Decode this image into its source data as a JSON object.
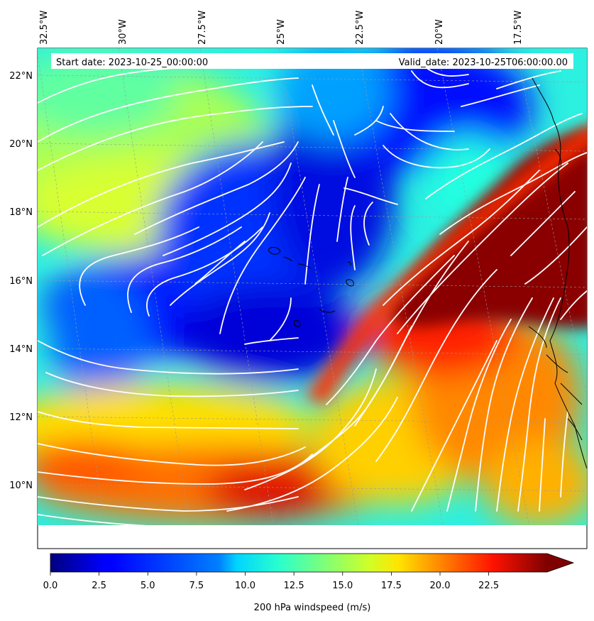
{
  "header": {
    "start_date": "Start date: 2023-10-25_00:00:00",
    "valid_date": "Valid_date: 2023-10-25T06:00:00.00"
  },
  "map": {
    "lon_ticks": [
      "32.5°W",
      "30°W",
      "27.5°W",
      "25°W",
      "22.5°W",
      "20°W",
      "17.5°W"
    ],
    "lat_ticks": [
      "22°N",
      "20°N",
      "18°N",
      "16°N",
      "14°N",
      "12°N",
      "10°N"
    ],
    "streamline_color": "#ffffff",
    "coast_color": "#000000"
  },
  "colorbar": {
    "label": "200 hPa windspeed (m/s)",
    "ticks": [
      "0.0",
      "2.5",
      "5.0",
      "7.5",
      "10.0",
      "12.5",
      "15.0",
      "17.5",
      "20.0",
      "22.5"
    ],
    "range": [
      0,
      25.5
    ],
    "colormap": "jet",
    "extend": "max"
  }
}
